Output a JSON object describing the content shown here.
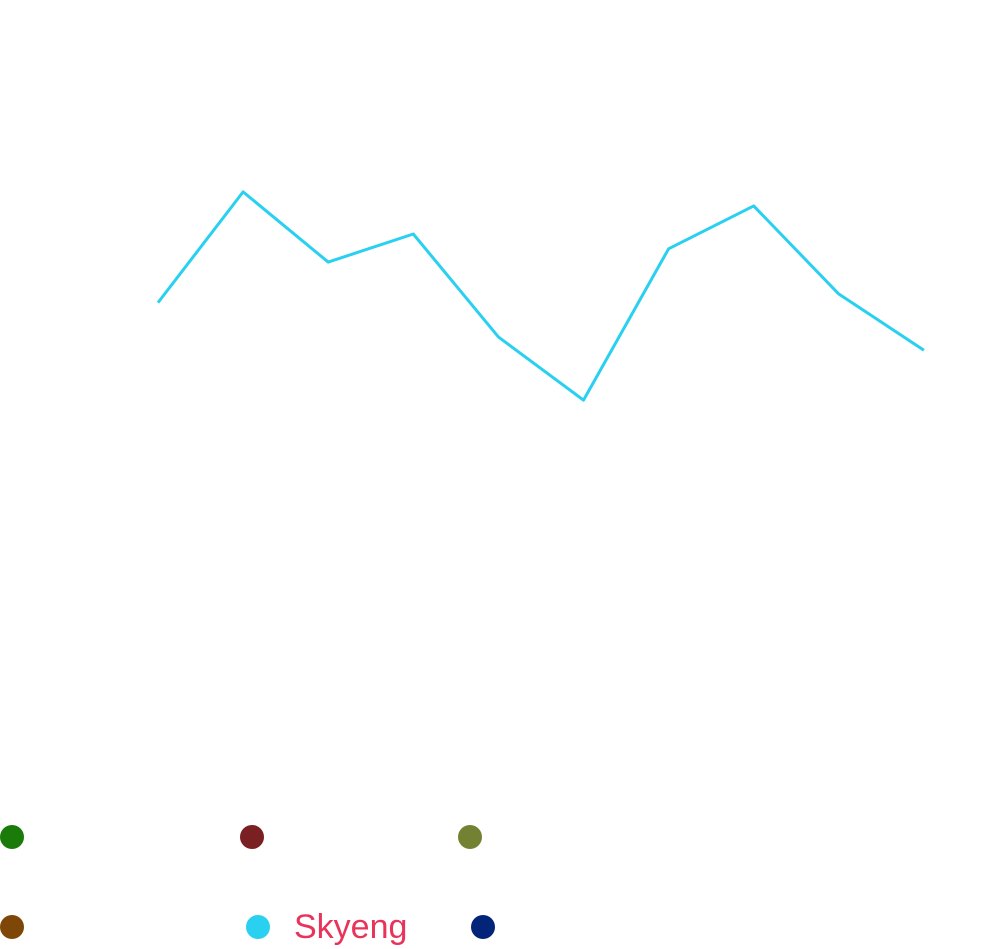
{
  "chart_data": {
    "type": "line",
    "categories": [
      null,
      null,
      null,
      null,
      null,
      null,
      null,
      null,
      null,
      null
    ],
    "series": [
      {
        "name": "Skyeng",
        "color": "#29d0f0",
        "values": [
          61.2,
          75.4,
          66.4,
          70.0,
          56.8,
          48.7,
          68.1,
          73.6,
          62.3,
          55.1
        ]
      }
    ],
    "ylim": [
      0,
      100
    ],
    "legend_text_color": "#e8335a",
    "unnamed_legend_colors": [
      "#1a7a0a",
      "#7a1f22",
      "#738232",
      "#7f4707",
      "#022479"
    ]
  }
}
